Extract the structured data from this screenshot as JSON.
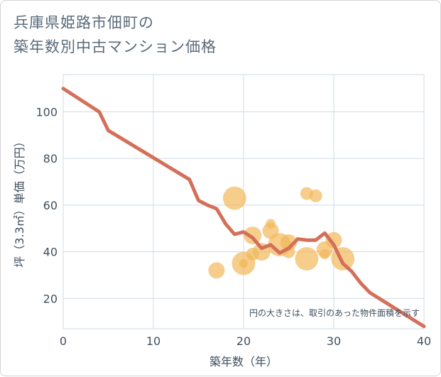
{
  "chart_data": {
    "type": "scatter",
    "title_lines": [
      "兵庫県姫路市佃町の",
      "築年数別中古マンション価格"
    ],
    "xlabel": "築年数（年）",
    "ylabel": "坪（3.3㎡）単価（万円）",
    "xlim": [
      0,
      40
    ],
    "ylim": [
      7,
      116
    ],
    "xticks": [
      0,
      10,
      20,
      30,
      40
    ],
    "yticks": [
      20,
      40,
      60,
      80,
      100
    ],
    "grid": true,
    "note": "円の大きさは、取引のあった物件面積を示す",
    "colors": {
      "bubble": "#f2b85a",
      "line": "#d4705a",
      "grid": "#cfdbe6"
    },
    "bubbles": [
      {
        "x": 17,
        "y": 32,
        "size": 2
      },
      {
        "x": 19,
        "y": 63,
        "size": 5
      },
      {
        "x": 20,
        "y": 35,
        "size": 5
      },
      {
        "x": 20,
        "y": 35,
        "size": 0.3
      },
      {
        "x": 21,
        "y": 47,
        "size": 2.5
      },
      {
        "x": 21,
        "y": 39,
        "size": 1
      },
      {
        "x": 22,
        "y": 40,
        "size": 2.5
      },
      {
        "x": 23,
        "y": 49,
        "size": 2
      },
      {
        "x": 23,
        "y": 52,
        "size": 0.4
      },
      {
        "x": 24,
        "y": 43,
        "size": 5
      },
      {
        "x": 25,
        "y": 44,
        "size": 2
      },
      {
        "x": 25,
        "y": 40,
        "size": 1
      },
      {
        "x": 27,
        "y": 65,
        "size": 1
      },
      {
        "x": 27,
        "y": 37,
        "size": 5
      },
      {
        "x": 28,
        "y": 64,
        "size": 1
      },
      {
        "x": 29,
        "y": 41,
        "size": 2
      },
      {
        "x": 29,
        "y": 39,
        "size": 0.5
      },
      {
        "x": 30,
        "y": 45,
        "size": 2
      },
      {
        "x": 31,
        "y": 37,
        "size": 5
      }
    ],
    "trend_line": {
      "x": [
        0,
        4,
        5,
        14,
        15,
        16,
        17,
        18,
        19,
        20,
        21,
        22,
        23,
        24,
        25,
        26,
        27,
        28,
        29,
        30,
        31,
        32,
        33,
        34,
        40
      ],
      "y": [
        110,
        100,
        92,
        71,
        62,
        60,
        58.5,
        52,
        47.5,
        48.5,
        46,
        41.5,
        43,
        39.5,
        41.5,
        45.5,
        45,
        45,
        48,
        43,
        35,
        31.5,
        26.5,
        22.5,
        8
      ]
    }
  }
}
